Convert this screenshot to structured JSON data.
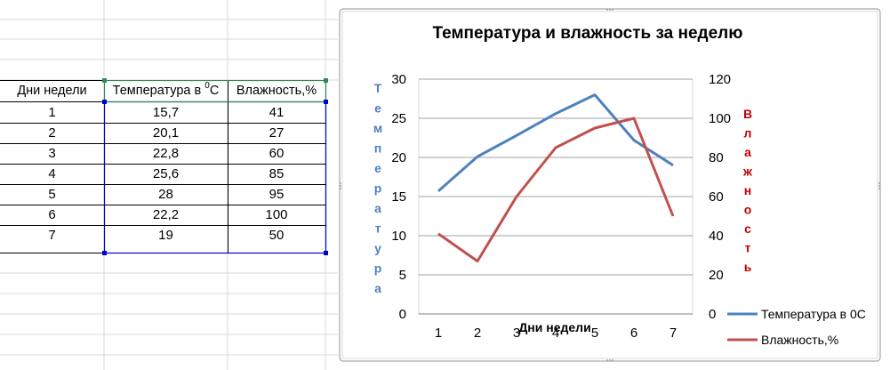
{
  "sheet": {
    "headers": [
      "Дни недели",
      "Температура в ",
      "Влажность,%"
    ],
    "temp_superscript": "0",
    "temp_unit": "C",
    "rows": [
      [
        "1",
        "15,7",
        "41"
      ],
      [
        "2",
        "20,1",
        "27"
      ],
      [
        "3",
        "22,8",
        "60"
      ],
      [
        "4",
        "25,6",
        "85"
      ],
      [
        "5",
        "28",
        "95"
      ],
      [
        "6",
        "22,2",
        "100"
      ],
      [
        "7",
        "19",
        "50"
      ]
    ]
  },
  "chart_data": {
    "type": "line",
    "title": "Температура  и влажность за неделю",
    "xlabel": "Дни недели",
    "ylabel_left": "Температура",
    "ylabel_right": "Влажность",
    "x": [
      1,
      2,
      3,
      4,
      5,
      6,
      7
    ],
    "x_tick_labels": [
      "1",
      "2",
      "3",
      "4",
      "5",
      "6",
      "7"
    ],
    "ylim_left": [
      0,
      30
    ],
    "y_ticks_left": [
      "0",
      "5",
      "10",
      "15",
      "20",
      "25",
      "30"
    ],
    "ylim_right": [
      0,
      120
    ],
    "y_ticks_right": [
      "0",
      "20",
      "40",
      "60",
      "80",
      "100",
      "120"
    ],
    "grid": true,
    "legend": "right",
    "series": [
      {
        "name": "Температура в 0С",
        "axis": "left",
        "color": "#4F81BD",
        "values": [
          15.7,
          20.1,
          22.8,
          25.6,
          28,
          22.2,
          19
        ]
      },
      {
        "name": "Влажность,%",
        "axis": "right",
        "color": "#C0504D",
        "values": [
          41,
          27,
          60,
          85,
          95,
          100,
          50
        ]
      }
    ],
    "ylabel_left_color": "#4F81BD",
    "ylabel_right_color": "#C00000"
  }
}
